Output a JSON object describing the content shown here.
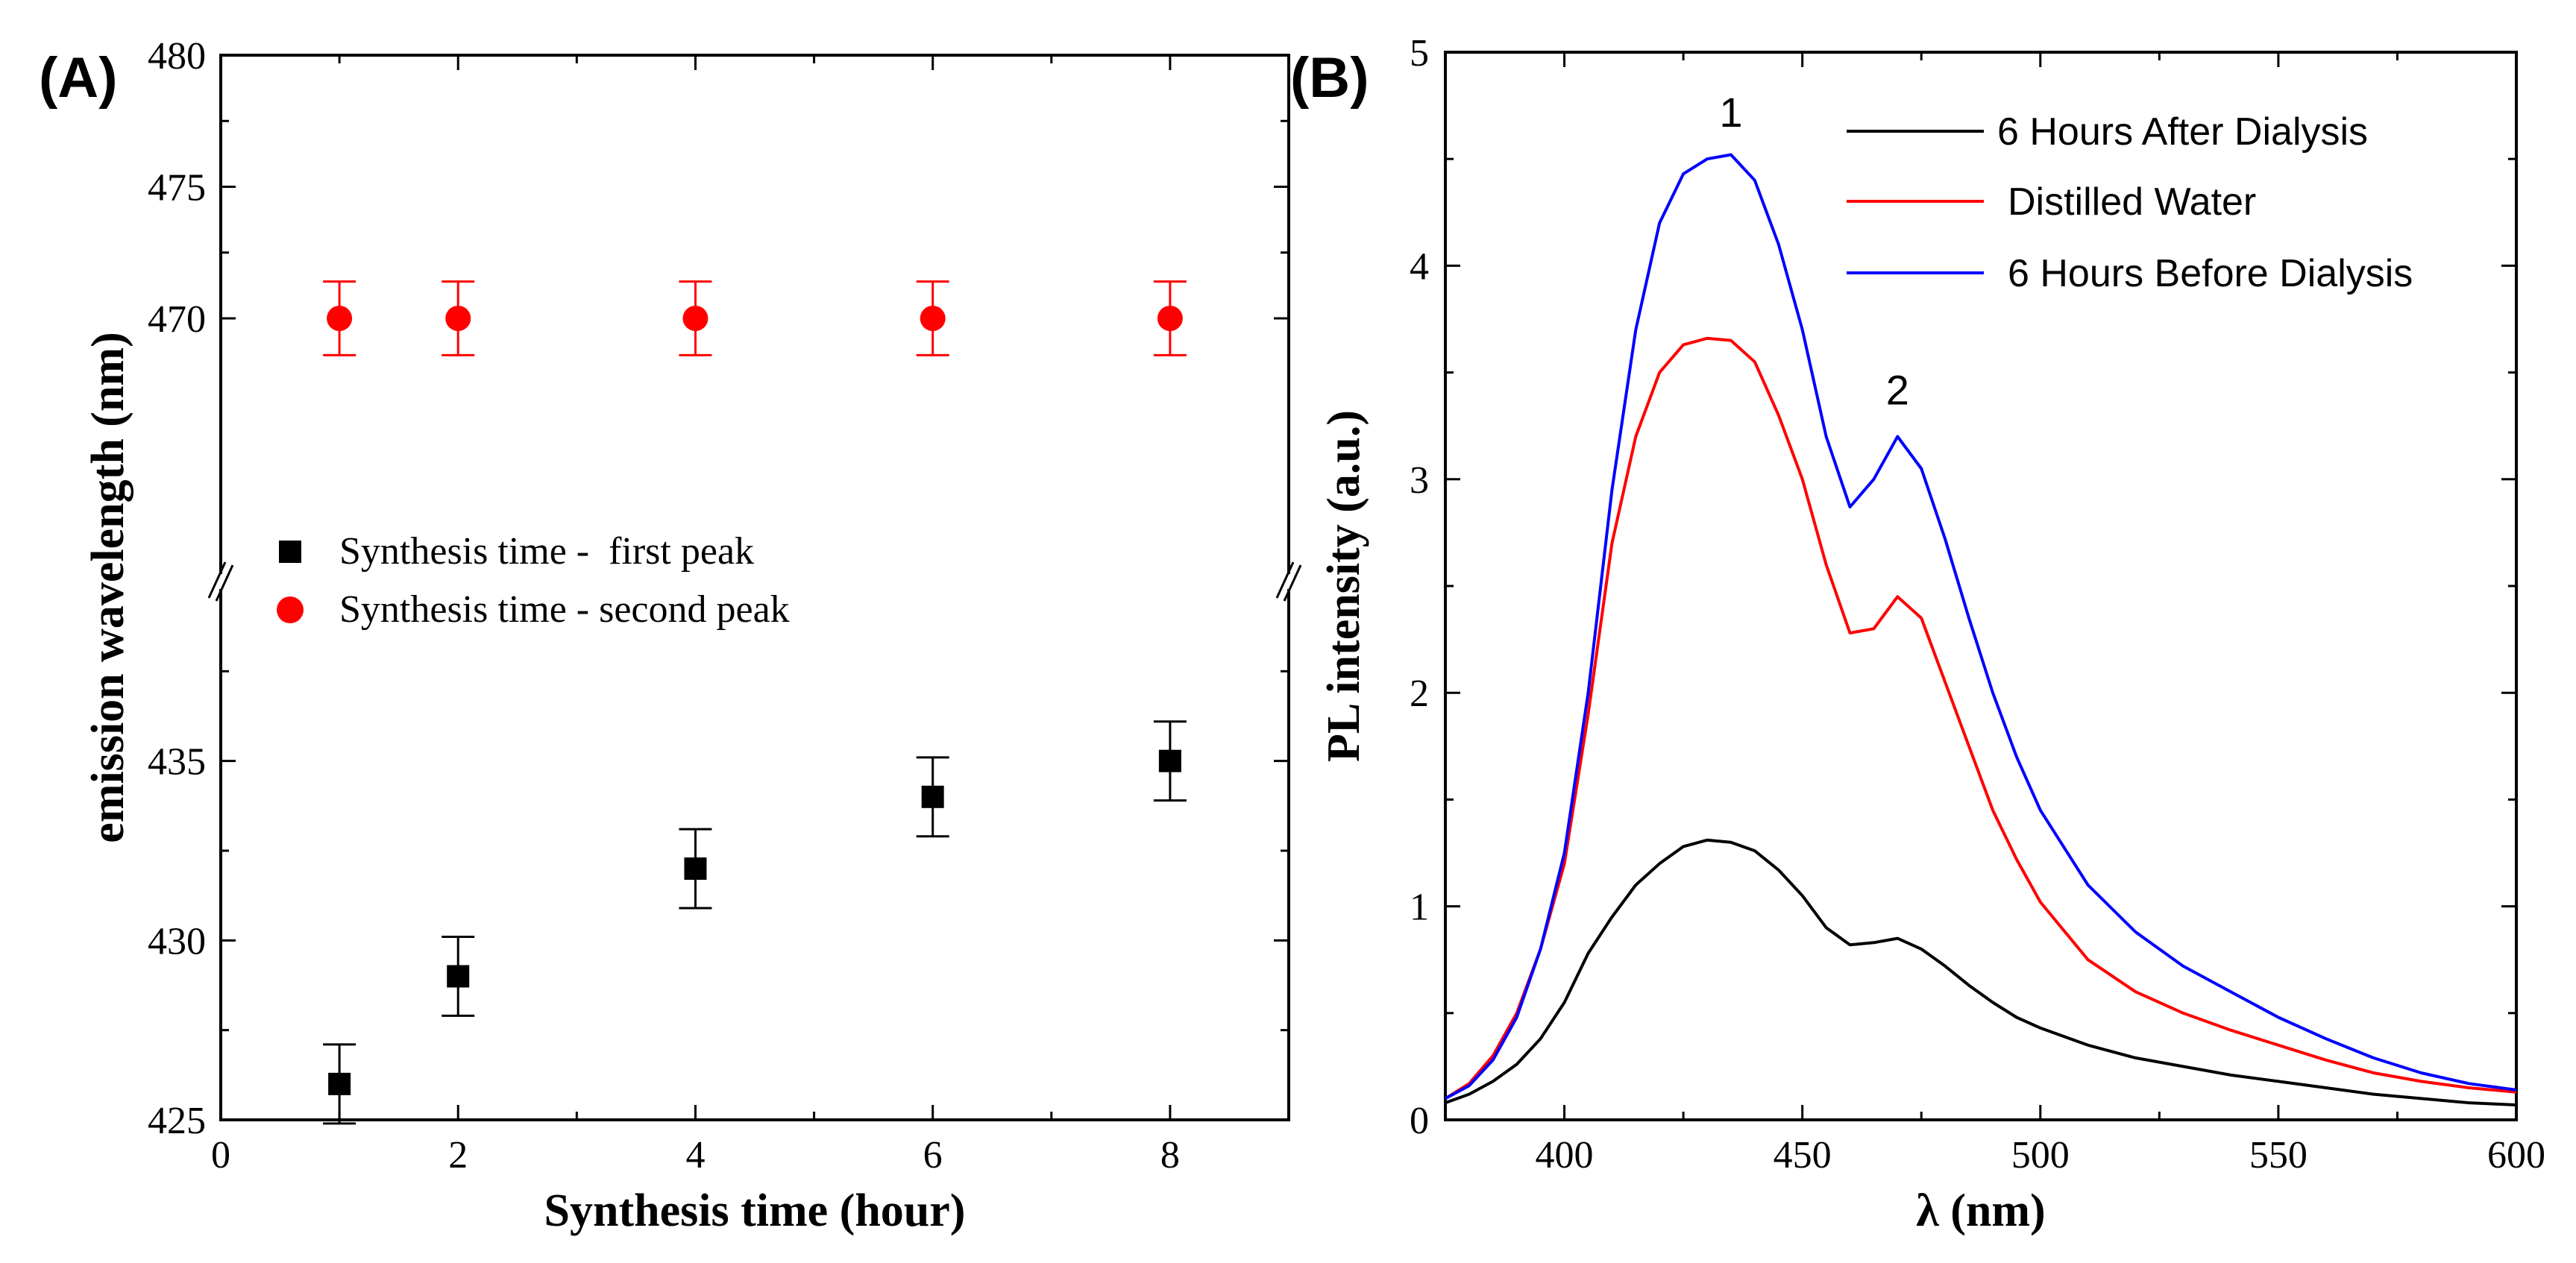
{
  "chart_data": [
    {
      "panel_label": "(A)",
      "type": "scatter",
      "xlabel": "Synthesis time (hour)",
      "ylabel": "emission wavelength (nm)",
      "xlim": [
        0,
        9
      ],
      "ylim_upper": [
        460,
        480
      ],
      "ylim_lower": [
        425,
        440
      ],
      "xticks": [
        0,
        2,
        4,
        6,
        8
      ],
      "xtick_labels": [
        "0",
        "2",
        "4",
        "6",
        "8"
      ],
      "yticks": [
        425,
        430,
        435,
        470,
        475,
        480
      ],
      "ytick_labels": [
        "425",
        "430",
        "435",
        "470",
        "475",
        "480"
      ],
      "axis_break": true,
      "legend_position": "center-left",
      "series": [
        {
          "name": "Synthesis time -  first peak",
          "marker": "square",
          "color": "#000000",
          "x": [
            1,
            2,
            4,
            6,
            8
          ],
          "y": [
            426,
            429,
            432,
            434,
            435
          ],
          "err": [
            1.1,
            1.1,
            1.1,
            1.1,
            1.1
          ]
        },
        {
          "name": "Synthesis time - second peak",
          "marker": "circle",
          "color": "#ff0000",
          "x": [
            1,
            2,
            4,
            6,
            8
          ],
          "y": [
            470,
            470,
            470,
            470,
            470
          ],
          "err": [
            1.4,
            1.4,
            1.4,
            1.4,
            1.4
          ]
        }
      ]
    },
    {
      "panel_label": "(B)",
      "type": "line",
      "xlabel": "λ (nm)",
      "ylabel": "PL intensity (a.u.)",
      "xlim": [
        375,
        600
      ],
      "ylim": [
        0,
        5
      ],
      "xticks": [
        400,
        450,
        500,
        550,
        600
      ],
      "xtick_labels": [
        "400",
        "450",
        "500",
        "550",
        "600"
      ],
      "yticks": [
        0,
        1,
        2,
        3,
        4,
        5
      ],
      "ytick_labels": [
        "0",
        "1",
        "2",
        "3",
        "4",
        "5"
      ],
      "legend_position": "top-right",
      "annotations": [
        {
          "text": "1",
          "x": 435,
          "y": 4.65
        },
        {
          "text": "2",
          "x": 470,
          "y": 3.35
        }
      ],
      "x": [
        375,
        380,
        385,
        390,
        395,
        400,
        405,
        410,
        415,
        420,
        425,
        430,
        435,
        440,
        445,
        450,
        455,
        460,
        465,
        470,
        475,
        480,
        485,
        490,
        495,
        500,
        510,
        520,
        530,
        540,
        550,
        560,
        570,
        580,
        590,
        600
      ],
      "series": [
        {
          "name": "6 Hours After Dialysis",
          "color": "#000000",
          "values": [
            0.08,
            0.12,
            0.18,
            0.26,
            0.38,
            0.55,
            0.78,
            0.95,
            1.1,
            1.2,
            1.28,
            1.31,
            1.3,
            1.26,
            1.17,
            1.05,
            0.9,
            0.82,
            0.83,
            0.85,
            0.8,
            0.72,
            0.63,
            0.55,
            0.48,
            0.43,
            0.35,
            0.29,
            0.25,
            0.21,
            0.18,
            0.15,
            0.12,
            0.1,
            0.08,
            0.07
          ]
        },
        {
          "name": "Distilled Water",
          "color": "#ff0000",
          "values": [
            0.1,
            0.17,
            0.3,
            0.5,
            0.8,
            1.2,
            1.9,
            2.7,
            3.2,
            3.5,
            3.63,
            3.66,
            3.65,
            3.55,
            3.3,
            3.0,
            2.6,
            2.28,
            2.3,
            2.45,
            2.35,
            2.05,
            1.75,
            1.45,
            1.22,
            1.02,
            0.75,
            0.6,
            0.5,
            0.42,
            0.35,
            0.28,
            0.22,
            0.18,
            0.15,
            0.13
          ]
        },
        {
          "name": "6 Hours Before Dialysis",
          "color": "#0000ff",
          "values": [
            0.1,
            0.16,
            0.28,
            0.48,
            0.8,
            1.25,
            2.0,
            2.95,
            3.7,
            4.2,
            4.43,
            4.5,
            4.52,
            4.4,
            4.1,
            3.7,
            3.2,
            2.87,
            3.0,
            3.2,
            3.05,
            2.72,
            2.35,
            2.0,
            1.7,
            1.45,
            1.1,
            0.88,
            0.72,
            0.6,
            0.48,
            0.38,
            0.29,
            0.22,
            0.17,
            0.14
          ]
        }
      ]
    }
  ]
}
